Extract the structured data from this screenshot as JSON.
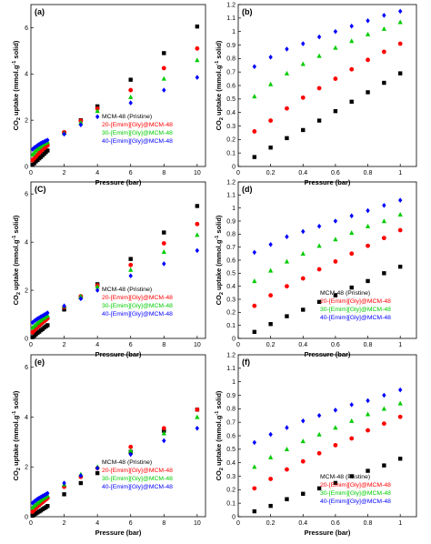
{
  "figure": {
    "series_colors": [
      "#000000",
      "#ff0000",
      "#00cc00",
      "#0000ff"
    ],
    "marker_shapes": [
      "square",
      "circle",
      "triangle",
      "diamond"
    ]
  },
  "chart_data": [
    {
      "panel": "(a)",
      "type": "scatter",
      "xlabel": "Pressure (bar)",
      "ylabel": "CO2 uptake (mmol.g-1 solid)",
      "xlim": [
        0,
        10.5
      ],
      "ylim": [
        0,
        7
      ],
      "xticks": [
        0,
        2,
        4,
        6,
        8,
        10
      ],
      "yticks": [
        0,
        2,
        4,
        6
      ],
      "legend": "center-right",
      "series": [
        {
          "name": "MCM-48 (Pristine)",
          "x": [
            0.1,
            0.2,
            0.3,
            0.4,
            0.5,
            0.6,
            0.7,
            0.8,
            0.9,
            1,
            2,
            3,
            4,
            6,
            8,
            10
          ],
          "y": [
            0.07,
            0.14,
            0.22,
            0.28,
            0.35,
            0.41,
            0.48,
            0.55,
            0.62,
            0.69,
            1.45,
            2.0,
            2.6,
            3.75,
            4.9,
            6.05
          ]
        },
        {
          "name": "20-[Emim][Gly]@MCM-48",
          "x": [
            0.1,
            0.2,
            0.3,
            0.4,
            0.5,
            0.6,
            0.7,
            0.8,
            0.9,
            1,
            2,
            3,
            4,
            6,
            8,
            10
          ],
          "y": [
            0.27,
            0.35,
            0.43,
            0.51,
            0.59,
            0.66,
            0.73,
            0.79,
            0.85,
            0.91,
            1.48,
            1.98,
            2.5,
            3.3,
            4.25,
            5.1
          ]
        },
        {
          "name": "30-[Emim][Gly]@MCM-48",
          "x": [
            0.1,
            0.2,
            0.3,
            0.4,
            0.5,
            0.6,
            0.7,
            0.8,
            0.9,
            1,
            2,
            3,
            4,
            6,
            8,
            10
          ],
          "y": [
            0.52,
            0.61,
            0.69,
            0.76,
            0.82,
            0.88,
            0.94,
            0.98,
            1.02,
            1.06,
            1.45,
            1.9,
            2.4,
            3.0,
            3.8,
            4.6
          ]
        },
        {
          "name": "40-[Emim][Gly]@MCM-48",
          "x": [
            0.1,
            0.2,
            0.3,
            0.4,
            0.5,
            0.6,
            0.7,
            0.8,
            0.9,
            1,
            2,
            3,
            4,
            6,
            8,
            10
          ],
          "y": [
            0.74,
            0.81,
            0.86,
            0.91,
            0.96,
            1.0,
            1.04,
            1.07,
            1.11,
            1.14,
            1.4,
            1.8,
            2.15,
            2.75,
            3.3,
            3.85
          ]
        }
      ]
    },
    {
      "panel": "(b)",
      "type": "scatter",
      "xlabel": "Pressure (bar)",
      "ylabel": "CO2 uptake (mmol.g-1 solid)",
      "xlim": [
        0,
        1.1
      ],
      "ylim": [
        0,
        1.2
      ],
      "xticks": [
        0,
        0.2,
        0.4,
        0.6,
        0.8,
        1
      ],
      "yticks": [
        0,
        0.1,
        0.2,
        0.3,
        0.4,
        0.5,
        0.6,
        0.7,
        0.8,
        0.9,
        1,
        1.1,
        1.2
      ],
      "series": [
        {
          "name": "MCM-48 (Pristine)",
          "x": [
            0.1,
            0.2,
            0.3,
            0.4,
            0.5,
            0.6,
            0.7,
            0.8,
            0.9,
            1
          ],
          "y": [
            0.07,
            0.14,
            0.21,
            0.27,
            0.34,
            0.41,
            0.48,
            0.55,
            0.62,
            0.69
          ]
        },
        {
          "name": "20-[Emim][Gly]@MCM-48",
          "x": [
            0.1,
            0.2,
            0.3,
            0.4,
            0.5,
            0.6,
            0.7,
            0.8,
            0.9,
            1
          ],
          "y": [
            0.26,
            0.34,
            0.43,
            0.51,
            0.58,
            0.65,
            0.72,
            0.79,
            0.85,
            0.91
          ]
        },
        {
          "name": "30-[Emim][Gly]@MCM-48",
          "x": [
            0.1,
            0.2,
            0.3,
            0.4,
            0.5,
            0.6,
            0.7,
            0.8,
            0.9,
            1
          ],
          "y": [
            0.52,
            0.61,
            0.69,
            0.76,
            0.82,
            0.88,
            0.93,
            0.98,
            1.02,
            1.07
          ]
        },
        {
          "name": "40-[Emim][Gly]@MCM-48",
          "x": [
            0.1,
            0.2,
            0.3,
            0.4,
            0.5,
            0.6,
            0.7,
            0.8,
            0.9,
            1
          ],
          "y": [
            0.74,
            0.81,
            0.87,
            0.91,
            0.96,
            1.0,
            1.04,
            1.08,
            1.12,
            1.15
          ]
        }
      ]
    },
    {
      "panel": "(C)",
      "type": "scatter",
      "xlabel": "Pressure (bar)",
      "ylabel": "CO2 uptake (mmol.g-1 solid)",
      "xlim": [
        0,
        10.5
      ],
      "ylim": [
        0,
        6.5
      ],
      "xticks": [
        0,
        2,
        4,
        6,
        8,
        10
      ],
      "yticks": [
        0,
        2,
        4,
        6
      ],
      "legend": "center-right",
      "series": [
        {
          "name": "MCM-48 (Pristine)",
          "x": [
            0.1,
            0.2,
            0.3,
            0.4,
            0.5,
            0.6,
            0.7,
            0.8,
            0.9,
            1,
            2,
            3,
            4,
            6,
            8,
            10
          ],
          "y": [
            0.05,
            0.11,
            0.17,
            0.23,
            0.28,
            0.34,
            0.39,
            0.45,
            0.5,
            0.55,
            1.2,
            1.7,
            2.25,
            3.3,
            4.4,
            5.5
          ]
        },
        {
          "name": "20-[Emim][Gly]@MCM-48",
          "x": [
            0.1,
            0.2,
            0.3,
            0.4,
            0.5,
            0.6,
            0.7,
            0.8,
            0.9,
            1,
            2,
            3,
            4,
            6,
            8,
            10
          ],
          "y": [
            0.25,
            0.33,
            0.4,
            0.47,
            0.53,
            0.6,
            0.66,
            0.72,
            0.77,
            0.83,
            1.3,
            1.75,
            2.2,
            3.05,
            3.95,
            4.75
          ]
        },
        {
          "name": "30-[Emim][Gly]@MCM-48",
          "x": [
            0.1,
            0.2,
            0.3,
            0.4,
            0.5,
            0.6,
            0.7,
            0.8,
            0.9,
            1,
            2,
            3,
            4,
            6,
            8,
            10
          ],
          "y": [
            0.45,
            0.52,
            0.58,
            0.65,
            0.71,
            0.76,
            0.82,
            0.86,
            0.9,
            0.95,
            1.35,
            1.75,
            2.15,
            2.85,
            3.6,
            4.3
          ]
        },
        {
          "name": "40-[Emim][Gly]@MCM-48",
          "x": [
            0.1,
            0.2,
            0.3,
            0.4,
            0.5,
            0.6,
            0.7,
            0.8,
            0.9,
            1,
            2,
            3,
            4,
            6,
            8,
            10
          ],
          "y": [
            0.66,
            0.72,
            0.77,
            0.82,
            0.86,
            0.9,
            0.94,
            0.98,
            1.02,
            1.06,
            1.35,
            1.65,
            2.0,
            2.6,
            3.1,
            3.65
          ]
        }
      ]
    },
    {
      "panel": "(d)",
      "type": "scatter",
      "xlabel": "Pressure (bar)",
      "ylabel": "CO2 uptake (mmol.g-1 solid)",
      "xlim": [
        0,
        1.1
      ],
      "ylim": [
        0,
        1.2
      ],
      "xticks": [
        0,
        0.2,
        0.4,
        0.6,
        0.8,
        1
      ],
      "yticks": [
        0,
        0.1,
        0.2,
        0.3,
        0.4,
        0.5,
        0.6,
        0.7,
        0.8,
        0.9,
        1,
        1.1,
        1.2
      ],
      "legend": "bottom-right",
      "series": [
        {
          "name": "MCM-48 (Pristine)",
          "x": [
            0.1,
            0.2,
            0.3,
            0.4,
            0.5,
            0.6,
            0.7,
            0.8,
            0.9,
            1
          ],
          "y": [
            0.05,
            0.11,
            0.17,
            0.22,
            0.28,
            0.33,
            0.39,
            0.44,
            0.5,
            0.55
          ]
        },
        {
          "name": "20-[Emim][Gly]@MCM-48",
          "x": [
            0.1,
            0.2,
            0.3,
            0.4,
            0.5,
            0.6,
            0.7,
            0.8,
            0.9,
            1
          ],
          "y": [
            0.25,
            0.33,
            0.4,
            0.46,
            0.53,
            0.59,
            0.65,
            0.71,
            0.77,
            0.83
          ]
        },
        {
          "name": "30-[Emim][Gly]@MCM-48",
          "x": [
            0.1,
            0.2,
            0.3,
            0.4,
            0.5,
            0.6,
            0.7,
            0.8,
            0.9,
            1
          ],
          "y": [
            0.44,
            0.52,
            0.59,
            0.65,
            0.71,
            0.76,
            0.81,
            0.86,
            0.9,
            0.95
          ]
        },
        {
          "name": "40-[Emim][Gly]@MCM-48",
          "x": [
            0.1,
            0.2,
            0.3,
            0.4,
            0.5,
            0.6,
            0.7,
            0.8,
            0.9,
            1
          ],
          "y": [
            0.66,
            0.72,
            0.78,
            0.82,
            0.86,
            0.9,
            0.94,
            0.98,
            1.02,
            1.06
          ]
        }
      ]
    },
    {
      "panel": "(e)",
      "type": "scatter",
      "xlabel": "Pressure (bar)",
      "ylabel": "CO2 uptake (mmol.g-1 solid)",
      "xlim": [
        0,
        10.5
      ],
      "ylim": [
        0,
        6.5
      ],
      "xticks": [
        0,
        2,
        4,
        6,
        8,
        10
      ],
      "yticks": [
        0,
        2,
        4,
        6
      ],
      "legend": "center-right",
      "series": [
        {
          "name": "MCM-48 (Pristine)",
          "x": [
            0.1,
            0.2,
            0.3,
            0.4,
            0.5,
            0.6,
            0.7,
            0.8,
            0.9,
            1,
            2,
            3,
            4,
            6,
            8,
            10
          ],
          "y": [
            0.04,
            0.08,
            0.13,
            0.17,
            0.21,
            0.25,
            0.3,
            0.34,
            0.38,
            0.43,
            0.9,
            1.35,
            1.75,
            2.6,
            3.45,
            4.3
          ]
        },
        {
          "name": "20-[Emim][Gly]@MCM-48",
          "x": [
            0.1,
            0.2,
            0.3,
            0.4,
            0.5,
            0.6,
            0.7,
            0.8,
            0.9,
            1,
            2,
            3,
            4,
            6,
            8,
            10
          ],
          "y": [
            0.2,
            0.27,
            0.35,
            0.41,
            0.47,
            0.53,
            0.58,
            0.64,
            0.69,
            0.75,
            1.2,
            1.6,
            1.95,
            2.8,
            3.55,
            4.3
          ]
        },
        {
          "name": "30-[Emim][Gly]@MCM-48",
          "x": [
            0.1,
            0.2,
            0.3,
            0.4,
            0.5,
            0.6,
            0.7,
            0.8,
            0.9,
            1,
            2,
            3,
            4,
            6,
            8,
            10
          ],
          "y": [
            0.37,
            0.44,
            0.5,
            0.56,
            0.61,
            0.67,
            0.72,
            0.76,
            0.8,
            0.85,
            1.3,
            1.7,
            2.0,
            2.65,
            3.35,
            4.0
          ]
        },
        {
          "name": "40-[Emim][Gly]@MCM-48",
          "x": [
            0.1,
            0.2,
            0.3,
            0.4,
            0.5,
            0.6,
            0.7,
            0.8,
            0.9,
            1,
            2,
            3,
            4,
            6,
            8,
            10
          ],
          "y": [
            0.55,
            0.61,
            0.66,
            0.71,
            0.75,
            0.79,
            0.83,
            0.86,
            0.9,
            0.94,
            1.35,
            1.65,
            1.95,
            2.5,
            3.05,
            3.55
          ]
        }
      ]
    },
    {
      "panel": "(f)",
      "type": "scatter",
      "xlabel": "Pressure (bar)",
      "ylabel": "CO2 uptake (mmol.g-1 solid)",
      "xlim": [
        0,
        1.1
      ],
      "ylim": [
        0,
        1.2
      ],
      "xticks": [
        0,
        0.2,
        0.4,
        0.6,
        0.8,
        1
      ],
      "yticks": [
        0,
        0.1,
        0.2,
        0.3,
        0.4,
        0.5,
        0.6,
        0.7,
        0.8,
        0.9,
        1,
        1.1,
        1.2
      ],
      "legend": "bottom-right",
      "series": [
        {
          "name": "MCM-48 (Pristine)",
          "x": [
            0.1,
            0.2,
            0.3,
            0.4,
            0.5,
            0.6,
            0.7,
            0.8,
            0.9,
            1
          ],
          "y": [
            0.04,
            0.08,
            0.13,
            0.17,
            0.21,
            0.25,
            0.3,
            0.34,
            0.38,
            0.43
          ]
        },
        {
          "name": "20-[Emim][Gly]@MCM-48",
          "x": [
            0.1,
            0.2,
            0.3,
            0.4,
            0.5,
            0.6,
            0.7,
            0.8,
            0.9,
            1
          ],
          "y": [
            0.21,
            0.28,
            0.35,
            0.41,
            0.47,
            0.53,
            0.58,
            0.64,
            0.69,
            0.74
          ]
        },
        {
          "name": "30-[Emim][Gly]@MCM-48",
          "x": [
            0.1,
            0.2,
            0.3,
            0.4,
            0.5,
            0.6,
            0.7,
            0.8,
            0.9,
            1
          ],
          "y": [
            0.37,
            0.44,
            0.5,
            0.56,
            0.61,
            0.66,
            0.71,
            0.76,
            0.8,
            0.84
          ]
        },
        {
          "name": "40-[Emim][Gly]@MCM-48",
          "x": [
            0.1,
            0.2,
            0.3,
            0.4,
            0.5,
            0.6,
            0.7,
            0.8,
            0.9,
            1
          ],
          "y": [
            0.55,
            0.61,
            0.66,
            0.71,
            0.75,
            0.79,
            0.83,
            0.86,
            0.9,
            0.94
          ]
        }
      ]
    }
  ]
}
